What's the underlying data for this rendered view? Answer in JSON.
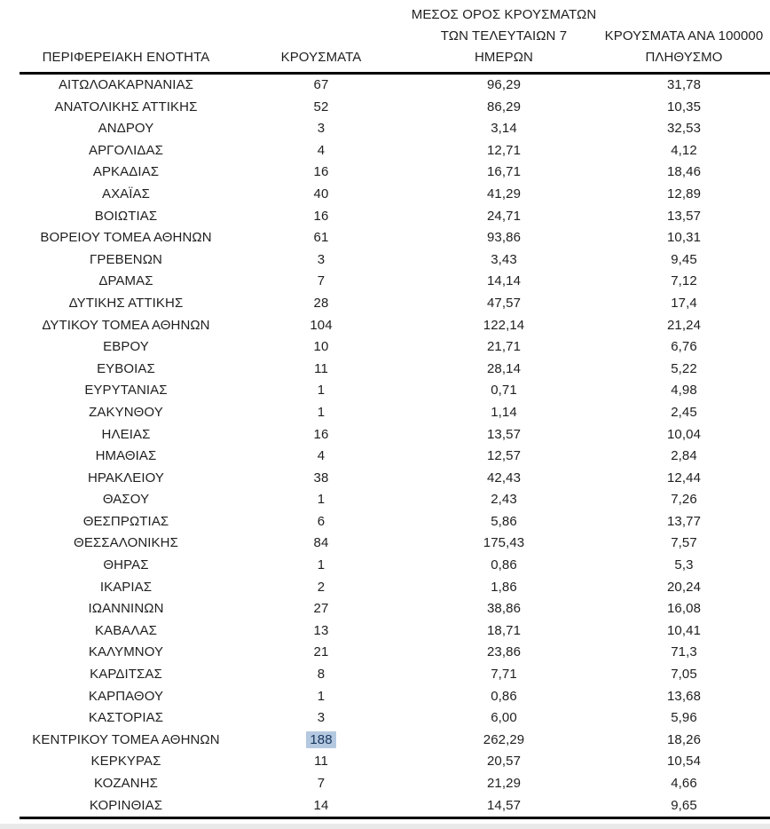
{
  "page": {
    "background": "#ffffff",
    "text_color": "#1f1f1f",
    "rule_color": "#000000",
    "bottom_strip_color": "#e9e9e9"
  },
  "table": {
    "header": {
      "col1": "ΠΕΡΙΦΕΡΕΙΑΚΗ ΕΝΟΤΗΤΑ",
      "col2": "ΚΡΟΥΣΜΑΤΑ",
      "col3": "ΜΕΣΟΣ ΟΡΟΣ ΚΡΟΥΣΜΑΤΩΝ\nΤΩΝ ΤΕΛΕΥΤΑΙΩΝ 7\nΗΜΕΡΩΝ",
      "col4": "ΚΡΟΥΣΜΑΤΑ ΑΝΑ 100000\nΠΛΗΘΥΣΜΟ"
    },
    "selection": {
      "background": "#b4c8e0",
      "text": "#17365d"
    }
  },
  "chart_data": {
    "type": "table",
    "columns": [
      "ΠΕΡΙΦΕΡΕΙΑΚΗ ΕΝΟΤΗΤΑ",
      "ΚΡΟΥΣΜΑΤΑ",
      "ΜΕΣΟΣ ΟΡΟΣ ΚΡΟΥΣΜΑΤΩΝ ΤΩΝ ΤΕΛΕΥΤΑΙΩΝ 7 ΗΜΕΡΩΝ",
      "ΚΡΟΥΣΜΑΤΑ ΑΝΑ 100000 ΠΛΗΘΥΣΜΟ"
    ],
    "selected_cell": {
      "region": "ΚΕΝΤΡΙΚΟΥ ΤΟΜΕΑ ΑΘΗΝΩΝ",
      "column": "ΚΡΟΥΣΜΑΤΑ",
      "value": "188"
    },
    "rows": [
      {
        "region": "ΑΙΤΩΛΟΑΚΑΡΝΑΝΙΑΣ",
        "cases": "67",
        "avg7": "96,29",
        "per100k": "31,78"
      },
      {
        "region": "ΑΝΑΤΟΛΙΚΗΣ ΑΤΤΙΚΗΣ",
        "cases": "52",
        "avg7": "86,29",
        "per100k": "10,35"
      },
      {
        "region": "ΑΝΔΡΟΥ",
        "cases": "3",
        "avg7": "3,14",
        "per100k": "32,53"
      },
      {
        "region": "ΑΡΓΟΛΙΔΑΣ",
        "cases": "4",
        "avg7": "12,71",
        "per100k": "4,12"
      },
      {
        "region": "ΑΡΚΑΔΙΑΣ",
        "cases": "16",
        "avg7": "16,71",
        "per100k": "18,46"
      },
      {
        "region": "ΑΧΑΪΑΣ",
        "cases": "40",
        "avg7": "41,29",
        "per100k": "12,89"
      },
      {
        "region": "ΒΟΙΩΤΙΑΣ",
        "cases": "16",
        "avg7": "24,71",
        "per100k": "13,57"
      },
      {
        "region": "ΒΟΡΕΙΟΥ ΤΟΜΕΑ ΑΘΗΝΩΝ",
        "cases": "61",
        "avg7": "93,86",
        "per100k": "10,31"
      },
      {
        "region": "ΓΡΕΒΕΝΩΝ",
        "cases": "3",
        "avg7": "3,43",
        "per100k": "9,45"
      },
      {
        "region": "ΔΡΑΜΑΣ",
        "cases": "7",
        "avg7": "14,14",
        "per100k": "7,12"
      },
      {
        "region": "ΔΥΤΙΚΗΣ ΑΤΤΙΚΗΣ",
        "cases": "28",
        "avg7": "47,57",
        "per100k": "17,4"
      },
      {
        "region": "ΔΥΤΙΚΟΥ ΤΟΜΕΑ ΑΘΗΝΩΝ",
        "cases": "104",
        "avg7": "122,14",
        "per100k": "21,24"
      },
      {
        "region": "ΕΒΡΟΥ",
        "cases": "10",
        "avg7": "21,71",
        "per100k": "6,76"
      },
      {
        "region": "ΕΥΒΟΙΑΣ",
        "cases": "11",
        "avg7": "28,14",
        "per100k": "5,22"
      },
      {
        "region": "ΕΥΡΥΤΑΝΙΑΣ",
        "cases": "1",
        "avg7": "0,71",
        "per100k": "4,98"
      },
      {
        "region": "ΖΑΚΥΝΘΟΥ",
        "cases": "1",
        "avg7": "1,14",
        "per100k": "2,45"
      },
      {
        "region": "ΗΛΕΙΑΣ",
        "cases": "16",
        "avg7": "13,57",
        "per100k": "10,04"
      },
      {
        "region": "ΗΜΑΘΙΑΣ",
        "cases": "4",
        "avg7": "12,57",
        "per100k": "2,84"
      },
      {
        "region": "ΗΡΑΚΛΕΙΟΥ",
        "cases": "38",
        "avg7": "42,43",
        "per100k": "12,44"
      },
      {
        "region": "ΘΑΣΟΥ",
        "cases": "1",
        "avg7": "2,43",
        "per100k": "7,26"
      },
      {
        "region": "ΘΕΣΠΡΩΤΙΑΣ",
        "cases": "6",
        "avg7": "5,86",
        "per100k": "13,77"
      },
      {
        "region": "ΘΕΣΣΑΛΟΝΙΚΗΣ",
        "cases": "84",
        "avg7": "175,43",
        "per100k": "7,57"
      },
      {
        "region": "ΘΗΡΑΣ",
        "cases": "1",
        "avg7": "0,86",
        "per100k": "5,3"
      },
      {
        "region": "ΙΚΑΡΙΑΣ",
        "cases": "2",
        "avg7": "1,86",
        "per100k": "20,24"
      },
      {
        "region": "ΙΩΑΝΝΙΝΩΝ",
        "cases": "27",
        "avg7": "38,86",
        "per100k": "16,08"
      },
      {
        "region": "ΚΑΒΑΛΑΣ",
        "cases": "13",
        "avg7": "18,71",
        "per100k": "10,41"
      },
      {
        "region": "ΚΑΛΥΜΝΟΥ",
        "cases": "21",
        "avg7": "23,86",
        "per100k": "71,3"
      },
      {
        "region": "ΚΑΡΔΙΤΣΑΣ",
        "cases": "8",
        "avg7": "7,71",
        "per100k": "7,05"
      },
      {
        "region": "ΚΑΡΠΑΘΟΥ",
        "cases": "1",
        "avg7": "0,86",
        "per100k": "13,68"
      },
      {
        "region": "ΚΑΣΤΟΡΙΑΣ",
        "cases": "3",
        "avg7": "6,00",
        "per100k": "5,96"
      },
      {
        "region": "ΚΕΝΤΡΙΚΟΥ ΤΟΜΕΑ ΑΘΗΝΩΝ",
        "cases": "188",
        "avg7": "262,29",
        "per100k": "18,26",
        "cases_selected": true
      },
      {
        "region": "ΚΕΡΚΥΡΑΣ",
        "cases": "11",
        "avg7": "20,57",
        "per100k": "10,54"
      },
      {
        "region": "ΚΟΖΑΝΗΣ",
        "cases": "7",
        "avg7": "21,29",
        "per100k": "4,66"
      },
      {
        "region": "ΚΟΡΙΝΘΙΑΣ",
        "cases": "14",
        "avg7": "14,57",
        "per100k": "9,65"
      }
    ]
  }
}
